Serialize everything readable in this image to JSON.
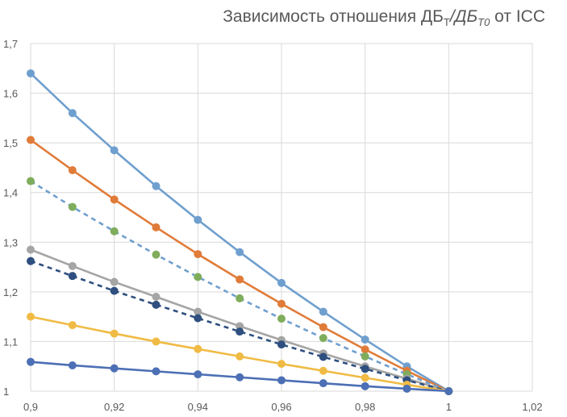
{
  "chart_data": {
    "type": "line",
    "title": {
      "prefix": "Зависимость отношения ДБ",
      "sub1": "Т",
      "mid": "/ДБ",
      "sub2": "Т0",
      "suffix": " от ICC"
    },
    "xlabel": "",
    "ylabel": "",
    "xlim": [
      0.9,
      1.02
    ],
    "ylim": [
      1.0,
      1.7
    ],
    "x_ticks": [
      "0,9",
      "0,92",
      "0,94",
      "0,96",
      "0,98",
      "1",
      "1,02"
    ],
    "y_ticks": [
      "1",
      "1,1",
      "1,2",
      "1,3",
      "1,4",
      "1,5",
      "1,6",
      "1,7"
    ],
    "grid": true,
    "legend": "none",
    "x": [
      0.9,
      0.91,
      0.92,
      0.93,
      0.94,
      0.95,
      0.96,
      0.97,
      0.98,
      0.99,
      1.0
    ],
    "series": [
      {
        "color": "#6f9fce",
        "dashed": false,
        "values": [
          1.64,
          1.56,
          1.485,
          1.413,
          1.345,
          1.28,
          1.218,
          1.16,
          1.104,
          1.05,
          1.0
        ]
      },
      {
        "color": "#e07b39",
        "dashed": false,
        "values": [
          1.506,
          1.445,
          1.386,
          1.33,
          1.276,
          1.225,
          1.176,
          1.129,
          1.084,
          1.041,
          1.0
        ]
      },
      {
        "color": "#6f9fce",
        "marker": "#7fad5b",
        "dashed": true,
        "values": [
          1.423,
          1.371,
          1.322,
          1.275,
          1.23,
          1.187,
          1.146,
          1.107,
          1.07,
          1.034,
          1.0
        ]
      },
      {
        "color": "#a5a5a5",
        "dashed": false,
        "values": [
          1.285,
          1.252,
          1.22,
          1.19,
          1.16,
          1.131,
          1.103,
          1.076,
          1.05,
          1.025,
          1.0
        ]
      },
      {
        "color": "#2e4f7f",
        "dashed": true,
        "values": [
          1.262,
          1.232,
          1.202,
          1.174,
          1.147,
          1.12,
          1.094,
          1.069,
          1.045,
          1.022,
          1.0
        ]
      },
      {
        "color": "#f0bb45",
        "dashed": false,
        "values": [
          1.15,
          1.133,
          1.116,
          1.1,
          1.085,
          1.07,
          1.055,
          1.041,
          1.027,
          1.013,
          1.0
        ]
      },
      {
        "color": "#4c6fb5",
        "dashed": false,
        "values": [
          1.059,
          1.052,
          1.046,
          1.04,
          1.034,
          1.028,
          1.022,
          1.016,
          1.01,
          1.005,
          1.0
        ]
      }
    ]
  }
}
